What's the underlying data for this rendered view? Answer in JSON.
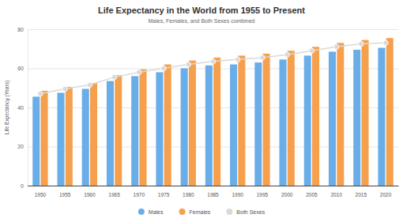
{
  "chart_data": {
    "type": "bar",
    "title": "Life Expectancy in the World from 1955 to Present",
    "subtitle": "Males, Females, and Both Sexes combined",
    "y_label": "Life Expectancy (Years)",
    "categories": [
      "1950",
      "1955",
      "1960",
      "1965",
      "1970",
      "1975",
      "1980",
      "1985",
      "1990",
      "1995",
      "2000",
      "2005",
      "2010",
      "2015",
      "2020"
    ],
    "series": [
      {
        "name": "Males",
        "color": "#6aaee9",
        "type": "bar",
        "values": [
          45.5,
          47.5,
          49.5,
          53.5,
          56,
          58,
          60,
          61.5,
          62,
          63,
          64.5,
          66.5,
          68.5,
          69.5,
          70.5
        ]
      },
      {
        "name": "Females",
        "color": "#f6a04d",
        "type": "bar",
        "values": [
          48.5,
          50.5,
          52.5,
          56.5,
          59.5,
          62,
          64,
          65.5,
          66.5,
          67.5,
          69,
          71,
          73,
          74.5,
          75.5
        ]
      },
      {
        "name": "Both Sexes",
        "color": "#d9d9d9",
        "type": "line",
        "marker": "circle",
        "values": [
          47,
          49.5,
          51.5,
          55.5,
          58,
          60,
          62,
          63.5,
          64.5,
          65.5,
          67,
          69,
          71,
          72.5,
          73
        ]
      }
    ],
    "ylim": [
      0,
      80
    ],
    "yticks": [
      0,
      20,
      40,
      60,
      80
    ],
    "grid": true,
    "legend": "bottom"
  }
}
